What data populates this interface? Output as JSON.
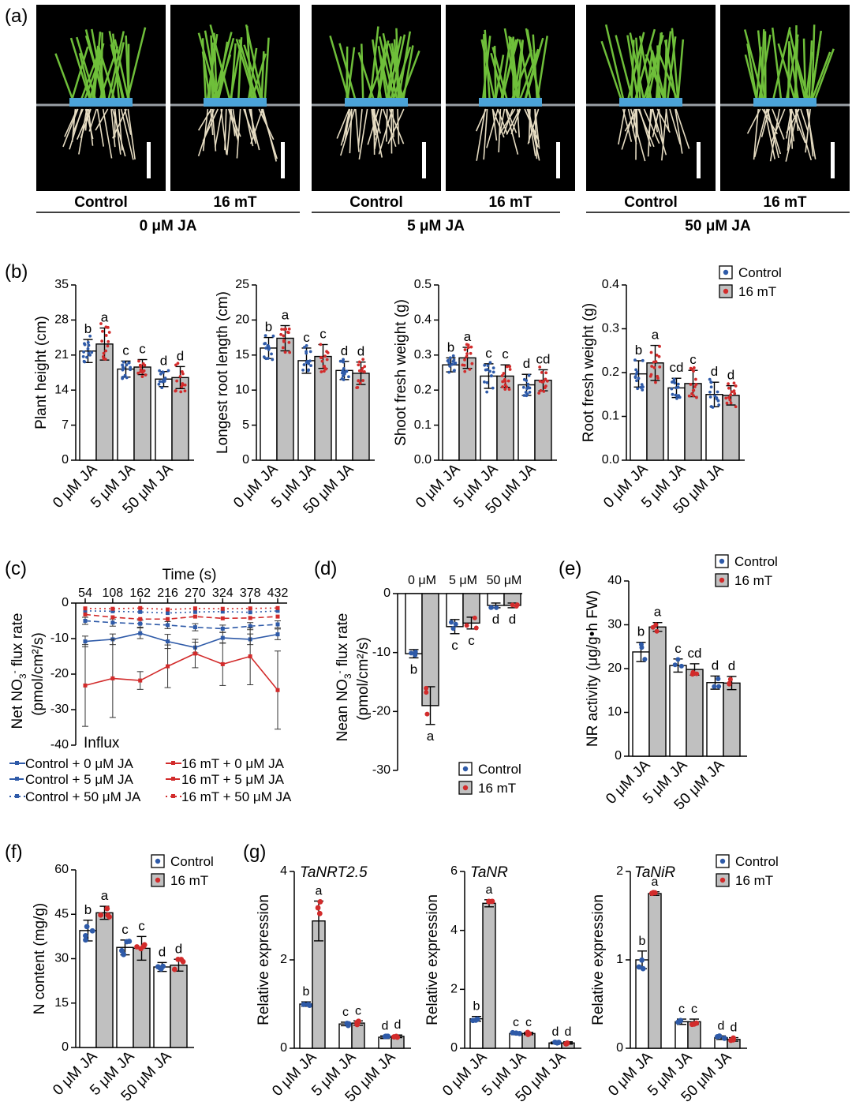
{
  "colors": {
    "control": "#2e5aa8",
    "treat": "#d22b2b",
    "bar_treat": "#c0c0c0",
    "bar_ctrl": "#ffffff",
    "photo_bg": "#000000",
    "tray": "#4ba3d8",
    "shoot": "#6fbf3a",
    "root": "#e6dcc2"
  },
  "panel_a": {
    "label": "(a)",
    "photos": [
      {
        "caption": "Control"
      },
      {
        "caption": "16 mT"
      },
      {
        "caption": "Control"
      },
      {
        "caption": "16 mT"
      },
      {
        "caption": "Control"
      },
      {
        "caption": "16 mT"
      }
    ],
    "groups": [
      "0 μM JA",
      "5 μM JA",
      "50 μM JA"
    ]
  },
  "chart_data": [
    {
      "id": "b1",
      "panel": "(b)",
      "type": "bar",
      "ylabel": "Plant height (cm)",
      "ylim": [
        0,
        35
      ],
      "yticks": [
        0,
        7,
        14,
        21,
        28,
        35
      ],
      "categories": [
        "0 μM JA",
        "5 μM JA",
        "50 μM JA"
      ],
      "series": [
        {
          "name": "Control",
          "values": [
            21.8,
            18.2,
            16.2
          ],
          "err": [
            2.3,
            1.6,
            1.5
          ],
          "letters": [
            "b",
            "c",
            "d"
          ]
        },
        {
          "name": "16 mT",
          "values": [
            23.2,
            18.6,
            16.5
          ],
          "err": [
            3.2,
            1.5,
            2.2
          ],
          "letters": [
            "a",
            "c",
            "d"
          ]
        }
      ]
    },
    {
      "id": "b2",
      "type": "bar",
      "ylabel": "Longest root length (cm)",
      "ylim": [
        0,
        25
      ],
      "yticks": [
        0,
        5,
        10,
        15,
        20,
        25
      ],
      "categories": [
        "0 μM JA",
        "5 μM JA",
        "50 μM JA"
      ],
      "series": [
        {
          "name": "Control",
          "values": [
            16.0,
            14.2,
            12.8
          ],
          "err": [
            1.5,
            1.8,
            1.3
          ],
          "letters": [
            "b",
            "c",
            "d"
          ]
        },
        {
          "name": "16 mT",
          "values": [
            17.4,
            14.8,
            12.4
          ],
          "err": [
            1.8,
            1.7,
            1.6
          ],
          "letters": [
            "a",
            "c",
            "d"
          ]
        }
      ]
    },
    {
      "id": "b3",
      "type": "bar",
      "ylabel": "Shoot fresh weight (g)",
      "ylim": [
        0,
        0.5
      ],
      "yticks": [
        "0.0",
        "0.1",
        "0.2",
        "0.3",
        "0.4",
        "0.5"
      ],
      "categories": [
        "0 μM JA",
        "5 μM JA",
        "50 μM JA"
      ],
      "series": [
        {
          "name": "Control",
          "values": [
            0.272,
            0.24,
            0.215
          ],
          "err": [
            0.02,
            0.035,
            0.03
          ],
          "letters": [
            "b",
            "c",
            "d"
          ]
        },
        {
          "name": "16 mT",
          "values": [
            0.292,
            0.24,
            0.228
          ],
          "err": [
            0.03,
            0.032,
            0.03
          ],
          "letters": [
            "a",
            "c",
            "cd"
          ]
        }
      ]
    },
    {
      "id": "b4",
      "type": "bar",
      "ylabel": "Root fresh weight (g)",
      "ylim": [
        0,
        0.4
      ],
      "yticks": [
        "0.0",
        "0.1",
        "0.2",
        "0.3",
        "0.4"
      ],
      "categories": [
        "0 μM JA",
        "5 μM JA",
        "50 μM JA"
      ],
      "series": [
        {
          "name": "Control",
          "values": [
            0.197,
            0.165,
            0.15
          ],
          "err": [
            0.03,
            0.022,
            0.028
          ],
          "letters": [
            "b",
            "cd",
            "d"
          ]
        },
        {
          "name": "16 mT",
          "values": [
            0.222,
            0.175,
            0.148
          ],
          "err": [
            0.04,
            0.03,
            0.022
          ],
          "letters": [
            "a",
            "c",
            "d"
          ]
        }
      ]
    },
    {
      "id": "c",
      "panel": "(c)",
      "type": "line",
      "title": "Time (s)",
      "ylabel_line1": "Net NO",
      "ylabel_sub": "3",
      "ylabel_sup": "-",
      "ylabel_tail": " flux rate",
      "ylabel_line2": "(pmol/cm²/s)",
      "x": [
        54,
        108,
        162,
        216,
        270,
        324,
        378,
        432
      ],
      "ylim": [
        -40,
        0
      ],
      "yticks": [
        0,
        -10,
        -20,
        -30,
        -40
      ],
      "annotation": "Influx",
      "series": [
        {
          "name": "Control + 0 μM JA",
          "style": "solid",
          "color": "control",
          "values": [
            -10.8,
            -10.2,
            -8.5,
            -10.8,
            -12.5,
            -9.8,
            -10.2,
            -8.8
          ],
          "err": [
            1.5,
            1.5,
            1.5,
            2,
            1.5,
            1.5,
            1.5,
            1.5
          ]
        },
        {
          "name": "Control + 5 μM JA",
          "style": "dash",
          "color": "control",
          "values": [
            -5,
            -5.5,
            -5.8,
            -6.2,
            -6.8,
            -7.2,
            -6.5,
            -6
          ],
          "err": [
            1,
            1,
            1,
            1,
            1,
            1,
            1,
            1
          ]
        },
        {
          "name": "Control + 50 μM JA",
          "style": "dot",
          "color": "control",
          "values": [
            -2.2,
            -2.3,
            -2.5,
            -2.8,
            -2.5,
            -2.4,
            -2.6,
            -2.2
          ],
          "err": [
            0.5,
            0.5,
            0.5,
            0.5,
            0.5,
            0.5,
            0.5,
            0.5
          ]
        },
        {
          "name": "16 mT + 0 μM JA",
          "style": "solid",
          "color": "treat",
          "values": [
            -23.2,
            -21.2,
            -21.8,
            -17.8,
            -14.2,
            -17.2,
            -15,
            -24.5
          ],
          "err": [
            11.5,
            11,
            2.5,
            6,
            4,
            6,
            8,
            11
          ]
        },
        {
          "name": "16 mT + 5 μM JA",
          "style": "dash",
          "color": "treat",
          "values": [
            -3.2,
            -4,
            -4.5,
            -4.5,
            -3.8,
            -4.3,
            -4.2,
            -3.8
          ],
          "err": [
            0.8,
            0.8,
            0.8,
            0.8,
            0.8,
            0.8,
            0.8,
            0.8
          ]
        },
        {
          "name": "16 mT + 50 μM JA",
          "style": "dot",
          "color": "treat",
          "values": [
            -1.5,
            -1.6,
            -1.4,
            -1.8,
            -1.5,
            -1.6,
            -1.5,
            -1.4
          ],
          "err": [
            0.3,
            0.3,
            0.3,
            0.3,
            0.3,
            0.3,
            0.3,
            0.3
          ]
        }
      ]
    },
    {
      "id": "d",
      "panel": "(d)",
      "type": "bar",
      "ylabel_line1": "Nean NO",
      "ylabel_sub": "3",
      "ylabel_sup": "-",
      "ylabel_tail": " flux rate",
      "ylabel_line2": "(pmol/cm²/s)",
      "ylim": [
        -30,
        0
      ],
      "yticks": [
        0,
        -10,
        -20,
        -30
      ],
      "categories": [
        "0 μM",
        "5 μM",
        "50 μM"
      ],
      "series": [
        {
          "name": "Control",
          "values": [
            -10.2,
            -5.6,
            -2.0
          ],
          "err": [
            0.7,
            1.2,
            0.4
          ],
          "letters": [
            "b",
            "c",
            "d"
          ]
        },
        {
          "name": "16 mT",
          "values": [
            -19,
            -5,
            -2.0
          ],
          "err": [
            3.2,
            1.0,
            0.4
          ],
          "letters": [
            "a",
            "c",
            "d"
          ]
        }
      ]
    },
    {
      "id": "e",
      "panel": "(e)",
      "type": "bar",
      "ylabel": "NR activity (μg/g•h FW)",
      "ylim": [
        0,
        40
      ],
      "yticks": [
        0,
        10,
        20,
        30,
        40
      ],
      "categories": [
        "0 μM JA",
        "5 μM JA",
        "50 μM JA"
      ],
      "series": [
        {
          "name": "Control",
          "values": [
            23.8,
            20.7,
            16.8
          ],
          "err": [
            2.2,
            1.5,
            1.5
          ],
          "letters": [
            "b",
            "c",
            "d"
          ]
        },
        {
          "name": "16 mT",
          "values": [
            29.5,
            19.8,
            16.7
          ],
          "err": [
            1,
            1.3,
            1.5
          ],
          "letters": [
            "a",
            "cd",
            "d"
          ]
        }
      ]
    },
    {
      "id": "f",
      "panel": "(f)",
      "type": "bar",
      "ylabel": "N content (mg/g)",
      "ylim": [
        0,
        60
      ],
      "yticks": [
        0,
        15,
        30,
        45,
        60
      ],
      "categories": [
        "0 μM JA",
        "5 μM JA",
        "50 μM JA"
      ],
      "series": [
        {
          "name": "Control",
          "values": [
            39.5,
            33.8,
            27.2
          ],
          "err": [
            3.5,
            2.5,
            1.5
          ],
          "letters": [
            "b",
            "c",
            "d"
          ]
        },
        {
          "name": "16 mT",
          "values": [
            45.5,
            33.5,
            27.8
          ],
          "err": [
            2.2,
            4,
            2
          ],
          "letters": [
            "a",
            "c",
            "d"
          ]
        }
      ]
    },
    {
      "id": "g1",
      "panel": "(g)",
      "type": "bar",
      "gene": "TaNRT2.5",
      "ylabel": "Relative expression",
      "ylim": [
        0,
        4
      ],
      "yticks": [
        0,
        2,
        4
      ],
      "categories": [
        "0 μM JA",
        "5 μM JA",
        "50 μM JA"
      ],
      "series": [
        {
          "name": "Control",
          "values": [
            1.0,
            0.55,
            0.25
          ],
          "err": [
            0.05,
            0.04,
            0.03
          ],
          "letters": [
            "b",
            "c",
            "d"
          ]
        },
        {
          "name": "16 mT",
          "values": [
            2.88,
            0.57,
            0.27
          ],
          "err": [
            0.45,
            0.05,
            0.03
          ],
          "letters": [
            "a",
            "c",
            "d"
          ]
        }
      ]
    },
    {
      "id": "g2",
      "type": "bar",
      "gene": "TaNR",
      "ylabel": "Relative expression",
      "ylim": [
        0,
        6
      ],
      "yticks": [
        0,
        2,
        4,
        6
      ],
      "categories": [
        "0 μM JA",
        "5 μM JA",
        "50 μM JA"
      ],
      "series": [
        {
          "name": "Control",
          "values": [
            1.0,
            0.5,
            0.18
          ],
          "err": [
            0.08,
            0.04,
            0.03
          ],
          "letters": [
            "b",
            "c",
            "d"
          ]
        },
        {
          "name": "16 mT",
          "values": [
            4.92,
            0.5,
            0.18
          ],
          "err": [
            0.12,
            0.04,
            0.04
          ],
          "letters": [
            "a",
            "c",
            "d"
          ]
        }
      ]
    },
    {
      "id": "g3",
      "type": "bar",
      "gene": "TaNiR",
      "ylabel": "Relative expression",
      "ylim": [
        0,
        2
      ],
      "yticks": [
        0,
        1,
        2
      ],
      "categories": [
        "0 μM JA",
        "5 μM JA",
        "50 μM JA"
      ],
      "series": [
        {
          "name": "Control",
          "values": [
            1.0,
            0.3,
            0.12
          ],
          "err": [
            0.1,
            0.03,
            0.02
          ],
          "letters": [
            "b",
            "c",
            "d"
          ]
        },
        {
          "name": "16 mT",
          "values": [
            1.75,
            0.3,
            0.1
          ],
          "err": [
            0.02,
            0.03,
            0.02
          ],
          "letters": [
            "a",
            "c",
            "d"
          ]
        }
      ]
    }
  ],
  "legend": {
    "control": "Control",
    "treat": "16 mT"
  }
}
